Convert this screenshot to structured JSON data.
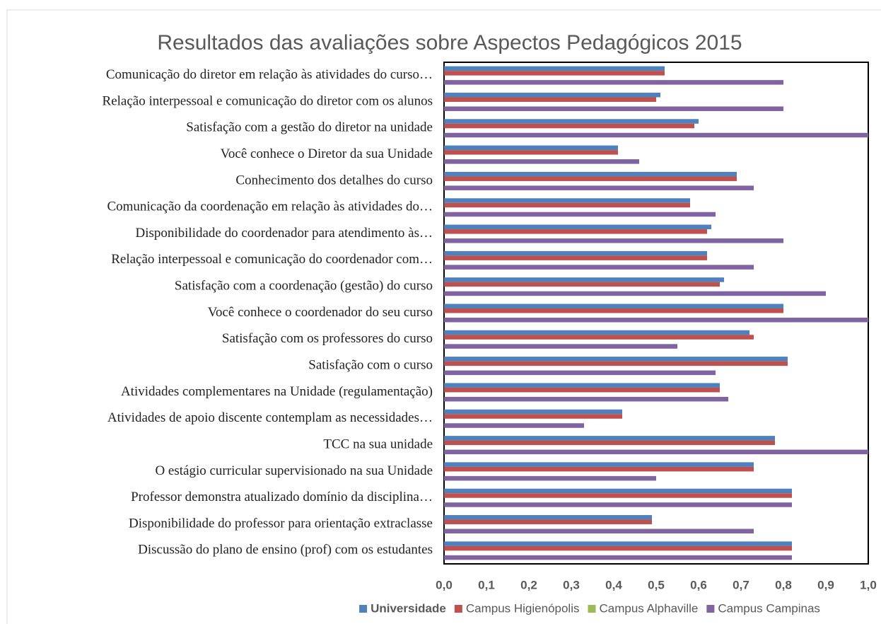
{
  "chart_data": {
    "type": "hbar",
    "title": "Resultados das avaliações sobre Aspectos Pedagógicos 2015",
    "categories": [
      "Comunicação do diretor em relação às atividades do curso…",
      "Relação interpessoal e comunicação do diretor com os alunos",
      "Satisfação com a gestão do diretor na unidade",
      "Você conhece o Diretor da sua Unidade",
      "Conhecimento dos detalhes do curso",
      "Comunicação da coordenação em relação às atividades do…",
      "Disponibilidade do coordenador para atendimento às…",
      "Relação interpessoal e comunicação do coordenador com…",
      "Satisfação com a coordenação (gestão) do curso",
      "Você conhece o coordenador do seu curso",
      "Satisfação com os professores do curso",
      "Satisfação com o curso",
      "Atividades complementares na Unidade (regulamentação)",
      "Atividades de apoio discente contemplam as necessidades…",
      "TCC na sua unidade",
      "O estágio curricular supervisionado na sua Unidade",
      "Professor demonstra atualizado  domínio da disciplina…",
      "Disponibilidade do professor para orientação extraclasse",
      "Discussão do plano de ensino (prof) com os estudantes"
    ],
    "series": [
      {
        "name": "Universidade",
        "color": "#4f81bd",
        "values": [
          0.52,
          0.51,
          0.6,
          0.41,
          0.69,
          0.58,
          0.63,
          0.62,
          0.66,
          0.8,
          0.72,
          0.81,
          0.65,
          0.42,
          0.78,
          0.73,
          0.82,
          0.49,
          0.82
        ]
      },
      {
        "name": "Campus Higienópolis",
        "color": "#c0504d",
        "values": [
          0.52,
          0.5,
          0.59,
          0.41,
          0.69,
          0.58,
          0.62,
          0.62,
          0.65,
          0.8,
          0.73,
          0.81,
          0.65,
          0.42,
          0.78,
          0.73,
          0.82,
          0.49,
          0.82
        ]
      },
      {
        "name": "Campus Alphaville",
        "color": "#9bbb59",
        "values": [
          null,
          null,
          null,
          null,
          null,
          null,
          null,
          null,
          null,
          null,
          null,
          null,
          null,
          null,
          null,
          null,
          null,
          null,
          null
        ]
      },
      {
        "name": "Campus Campinas",
        "color": "#8064a2",
        "values": [
          0.8,
          0.8,
          1.0,
          0.46,
          0.73,
          0.64,
          0.8,
          0.73,
          0.9,
          1.0,
          0.55,
          0.64,
          0.67,
          0.33,
          1.0,
          0.5,
          0.82,
          0.73,
          0.82
        ]
      }
    ],
    "xlim": [
      0,
      1.0
    ],
    "xticks": [
      {
        "value": 0,
        "label": "0,0"
      },
      {
        "value": 0.1,
        "label": "0,1"
      },
      {
        "value": 0.2,
        "label": "0,2"
      },
      {
        "value": 0.3,
        "label": "0,3"
      },
      {
        "value": 0.4,
        "label": "0,4"
      },
      {
        "value": 0.5,
        "label": "0,5"
      },
      {
        "value": 0.6,
        "label": "0,6"
      },
      {
        "value": 0.7,
        "label": "0,7"
      },
      {
        "value": 0.8,
        "label": "0,8"
      },
      {
        "value": 0.9,
        "label": "0,9"
      },
      {
        "value": 1.0,
        "label": "1,0"
      }
    ],
    "grid": false,
    "legend": "bottom"
  }
}
